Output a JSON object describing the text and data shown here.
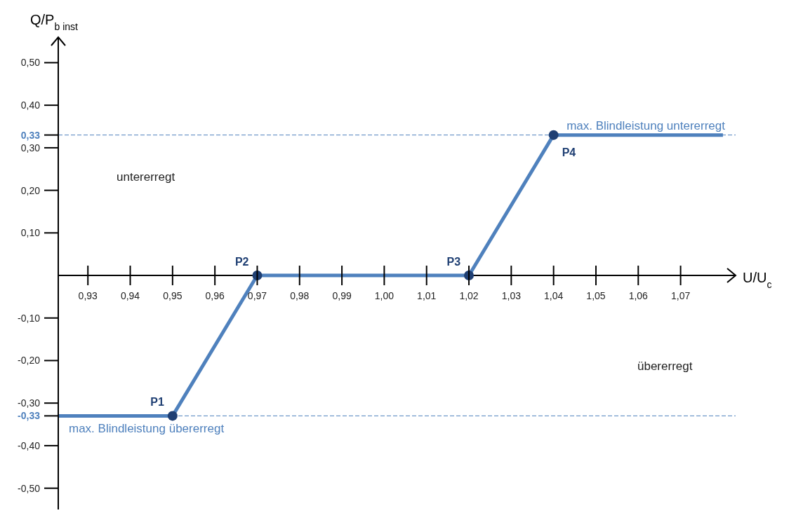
{
  "chart_data": {
    "type": "line",
    "xlabel": "U/U$_{c}$",
    "ylabel": "Q/P$_{b inst}$",
    "x": [
      0.923,
      0.95,
      0.97,
      1.02,
      1.04,
      1.08
    ],
    "series": [
      {
        "color": "#4f81bd",
        "values": [
          -0.33,
          -0.33,
          0,
          0,
          0.33,
          0.33
        ]
      }
    ],
    "xlim": [
      0.923,
      1.083
    ],
    "xticks": [
      {
        "value": 0.93,
        "label": "0,93"
      },
      {
        "value": 0.94,
        "label": "0,94"
      },
      {
        "value": 0.95,
        "label": "0,95"
      },
      {
        "value": 0.96,
        "label": "0,96"
      },
      {
        "value": 0.97,
        "label": "0,97"
      },
      {
        "value": 0.98,
        "label": "0,98"
      },
      {
        "value": 0.99,
        "label": "0,99"
      },
      {
        "value": 1.0,
        "label": "1,00"
      },
      {
        "value": 1.01,
        "label": "1,01"
      },
      {
        "value": 1.02,
        "label": "1,02"
      },
      {
        "value": 1.03,
        "label": "1,03"
      },
      {
        "value": 1.04,
        "label": "1,04"
      },
      {
        "value": 1.05,
        "label": "1,05"
      },
      {
        "value": 1.06,
        "label": "1,06"
      },
      {
        "value": 1.07,
        "label": "1,07"
      }
    ],
    "ylim": [
      -0.55,
      0.56
    ],
    "yticks": [
      {
        "value": -0.5,
        "label": "-0,50"
      },
      {
        "value": -0.4,
        "label": "-0,40"
      },
      {
        "value": -0.33,
        "label": "-0,33"
      },
      {
        "value": -0.3,
        "label": "-0,30"
      },
      {
        "value": -0.2,
        "label": "-0,20"
      },
      {
        "value": -0.1,
        "label": "-0,10"
      },
      {
        "value": 0.1,
        "label": "0,10"
      },
      {
        "value": 0.2,
        "label": "0,20"
      },
      {
        "value": 0.3,
        "label": "0,30"
      },
      {
        "value": 0.33,
        "label": "0,33"
      },
      {
        "value": 0.4,
        "label": "0,40"
      },
      {
        "value": 0.5,
        "label": "0,50"
      }
    ],
    "ref_lines": [
      {
        "axis": "y",
        "value": 0.33,
        "label": "max. Blindleistung untererregt",
        "color": "#4f81bd",
        "line_style": "dashed"
      },
      {
        "axis": "y",
        "value": -0.33,
        "label": "max. Blindleistung übererregt",
        "color": "#4f81bd",
        "line_style": "dashed"
      }
    ],
    "annotations": [
      {
        "text": "P1",
        "x": 0.95,
        "y": -0.33
      },
      {
        "text": "P2",
        "x": 0.97,
        "y": 0
      },
      {
        "text": "P3",
        "x": 1.02,
        "y": 0
      },
      {
        "text": "P4",
        "x": 1.04,
        "y": 0.33
      },
      "untererregt",
      "übererregt"
    ],
    "marker": "circle",
    "line_style": "solid"
  }
}
